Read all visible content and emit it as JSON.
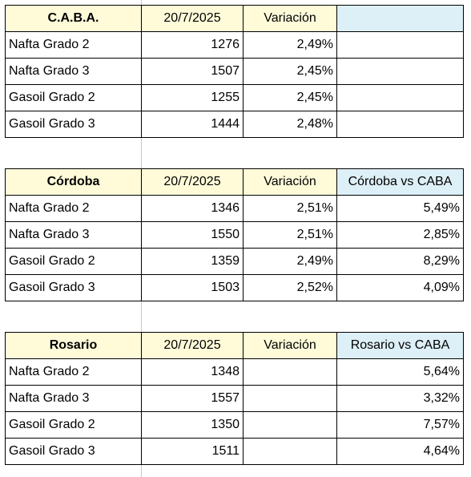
{
  "tables": [
    {
      "city": "C.A.B.A.",
      "date": "20/7/2025",
      "variation_header": "Variación",
      "comparison_header": "",
      "rows": [
        {
          "product": "Nafta Grado 2",
          "price": "1276",
          "variation": "2,49%",
          "comparison": ""
        },
        {
          "product": "Nafta Grado 3",
          "price": "1507",
          "variation": "2,45%",
          "comparison": ""
        },
        {
          "product": "Gasoil Grado 2",
          "price": "1255",
          "variation": "2,45%",
          "comparison": ""
        },
        {
          "product": "Gasoil Grado 3",
          "price": "1444",
          "variation": "2,48%",
          "comparison": ""
        }
      ]
    },
    {
      "city": "Córdoba",
      "date": "20/7/2025",
      "variation_header": "Variación",
      "comparison_header": "Córdoba vs CABA",
      "rows": [
        {
          "product": "Nafta Grado 2",
          "price": "1346",
          "variation": "2,51%",
          "comparison": "5,49%"
        },
        {
          "product": "Nafta Grado 3",
          "price": "1550",
          "variation": "2,51%",
          "comparison": "2,85%"
        },
        {
          "product": "Gasoil Grado 2",
          "price": "1359",
          "variation": "2,49%",
          "comparison": "8,29%"
        },
        {
          "product": "Gasoil Grado 3",
          "price": "1503",
          "variation": "2,52%",
          "comparison": "4,09%"
        }
      ]
    },
    {
      "city": "Rosario",
      "date": "20/7/2025",
      "variation_header": "Variación",
      "comparison_header": "Rosario vs CABA",
      "rows": [
        {
          "product": "Nafta Grado 2",
          "price": "1348",
          "variation": "",
          "comparison": "5,64%"
        },
        {
          "product": "Nafta Grado 3",
          "price": "1557",
          "variation": "",
          "comparison": "3,32%"
        },
        {
          "product": "Gasoil Grado 2",
          "price": "1350",
          "variation": "",
          "comparison": "7,57%"
        },
        {
          "product": "Gasoil Grado 3",
          "price": "1511",
          "variation": "",
          "comparison": "4,64%"
        }
      ]
    }
  ],
  "colors": {
    "header_yellow": "#fffbd9",
    "header_blue": "#ddeff7",
    "grid_line": "#c8c8c8"
  }
}
